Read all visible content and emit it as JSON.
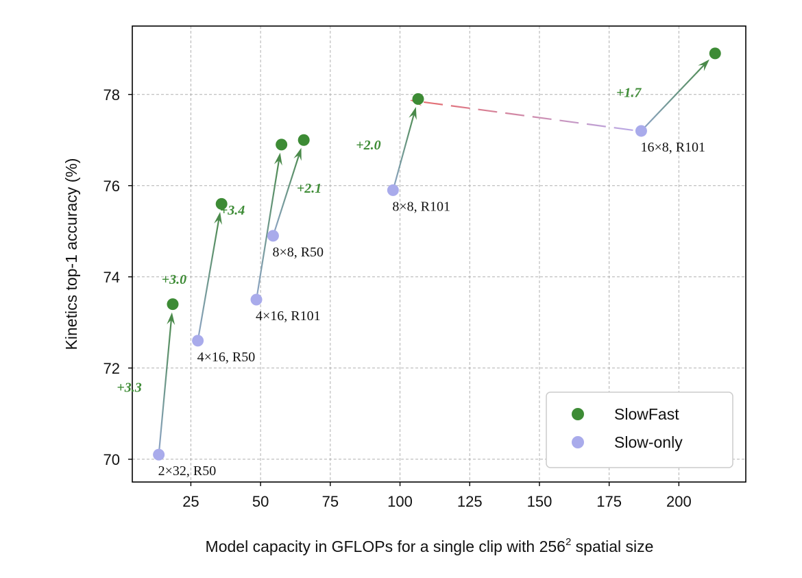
{
  "chart_data": {
    "type": "scatter",
    "xlabel": "Model capacity in GFLOPs for a single clip with 256",
    "xlabel_superscript": "2",
    "xlabel_suffix": " spatial size",
    "ylabel": "Kinetics top-1 accuracy (%)",
    "xlim": [
      4,
      224
    ],
    "ylim": [
      69.5,
      79.5
    ],
    "xticks": [
      25,
      50,
      75,
      100,
      125,
      150,
      175,
      200
    ],
    "yticks": [
      70,
      72,
      74,
      76,
      78
    ],
    "grid": true,
    "legend": {
      "position": "bottom-right",
      "entries": [
        "SlowFast",
        "Slow-only"
      ]
    },
    "colors": {
      "slowfast": "#3d8b35",
      "slow_only": "#a9abeb",
      "arrow_gain": "#4a8a4a",
      "arrow_slow": "#8fa4c8",
      "dashed_start": "#b9a9e6",
      "dashed_end": "#e86a6a",
      "gain_text": "#3d8b35"
    },
    "series": [
      {
        "name": "SlowFast",
        "points": [
          [
            18.5,
            73.4
          ],
          [
            36,
            75.6
          ],
          [
            57.5,
            76.9
          ],
          [
            65.5,
            77.0
          ],
          [
            106.5,
            77.9
          ],
          [
            213,
            78.9
          ]
        ]
      },
      {
        "name": "Slow-only",
        "points": [
          [
            13.5,
            70.1
          ],
          [
            27.5,
            72.6
          ],
          [
            48.5,
            73.5
          ],
          [
            54.5,
            74.9
          ],
          [
            97.5,
            75.9
          ],
          [
            186.5,
            77.2
          ]
        ]
      }
    ],
    "point_labels": [
      {
        "text": "2×32, R50",
        "x": 13.5,
        "y": 70.1
      },
      {
        "text": "4×16, R50",
        "x": 27.5,
        "y": 72.6
      },
      {
        "text": "4×16, R101",
        "x": 48.5,
        "y": 73.5
      },
      {
        "text": "8×8, R50",
        "x": 54.5,
        "y": 74.9
      },
      {
        "text": "8×8, R101",
        "x": 97.5,
        "y": 75.9
      },
      {
        "text": "16×8, R101",
        "x": 186.5,
        "y": 77.2
      }
    ],
    "arrows": [
      {
        "from": [
          13.5,
          70.1
        ],
        "to": [
          18.5,
          73.4
        ],
        "gain": "+3.3"
      },
      {
        "from": [
          27.5,
          72.6
        ],
        "to": [
          36,
          75.6
        ],
        "gain": "+3.0"
      },
      {
        "from": [
          48.5,
          73.5
        ],
        "to": [
          57.5,
          76.9
        ],
        "gain": "+3.4"
      },
      {
        "from": [
          54.5,
          74.9
        ],
        "to": [
          65.5,
          77.0
        ],
        "gain": "+2.1"
      },
      {
        "from": [
          97.5,
          75.9
        ],
        "to": [
          106.5,
          77.9
        ],
        "gain": "+2.0"
      },
      {
        "from": [
          186.5,
          77.2
        ],
        "to": [
          213,
          78.9
        ],
        "gain": "+1.7"
      }
    ],
    "dashed_arrow": {
      "from": [
        186.5,
        77.2
      ],
      "to": [
        106.5,
        77.9
      ]
    }
  }
}
